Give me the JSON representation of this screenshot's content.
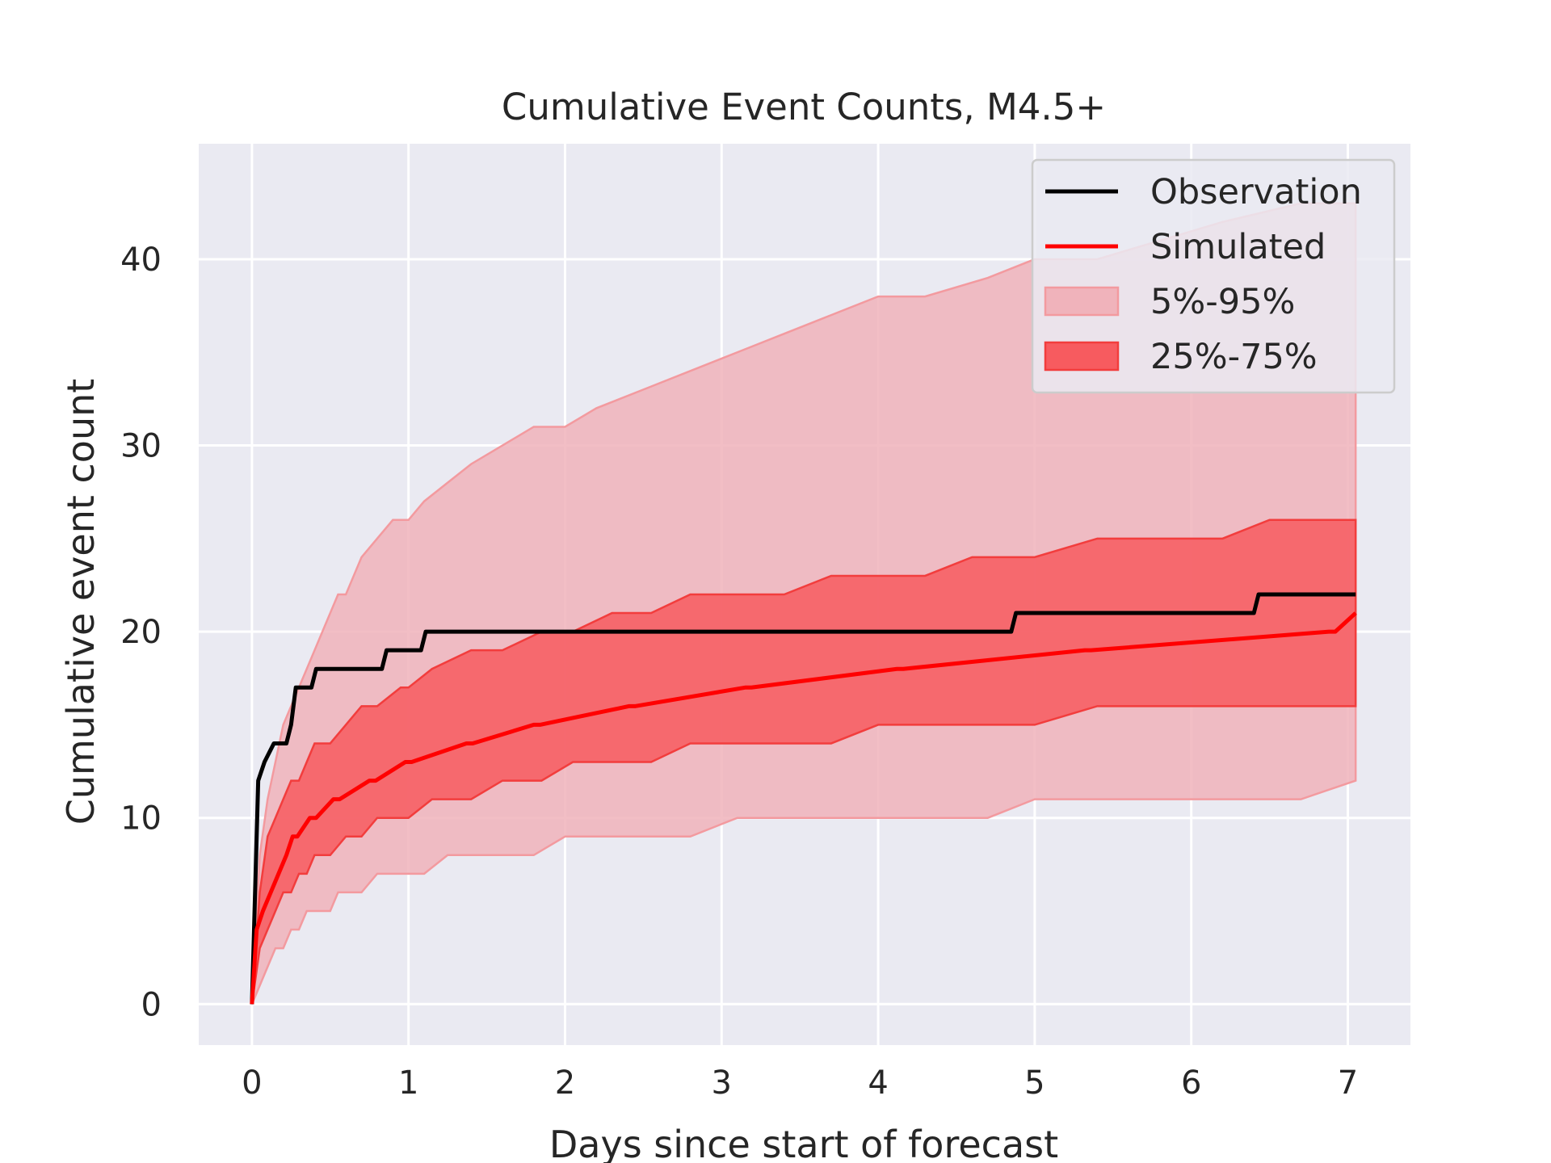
{
  "chart_data": {
    "type": "line",
    "title": "Cumulative Event Counts, M4.5+",
    "xlabel": "Days since start of forecast",
    "ylabel": "Cumulative event count",
    "xlim": [
      -0.34,
      7.4
    ],
    "ylim": [
      -2.2,
      46.2
    ],
    "xticks": [
      0,
      1,
      2,
      3,
      4,
      5,
      6,
      7
    ],
    "yticks": [
      0,
      10,
      20,
      30,
      40
    ],
    "grid": true,
    "legend_position": "top-right",
    "colors": {
      "background": "#eaeaf2",
      "grid": "#ffffff",
      "observation": "#000000",
      "simulated": "#ff0000",
      "band_outer": "#f0b3bb",
      "band_outer_edge": "#f39a9f",
      "band_inner": "#f75b5f",
      "band_inner_edge": "#f23d3d"
    },
    "series": [
      {
        "name": "Observation",
        "kind": "line",
        "x": [
          0,
          0.04,
          0.08,
          0.14,
          0.22,
          0.25,
          0.28,
          0.38,
          0.41,
          0.83,
          0.86,
          1.08,
          1.11,
          4.85,
          4.88,
          6.4,
          6.43,
          7.05
        ],
        "y": [
          0,
          12,
          13,
          14,
          14,
          15,
          17,
          17,
          18,
          18,
          19,
          19,
          20,
          20,
          21,
          21,
          22,
          22
        ]
      },
      {
        "name": "Simulated",
        "kind": "line",
        "x": [
          0,
          0.03,
          0.07,
          0.12,
          0.17,
          0.22,
          0.26,
          0.29,
          0.37,
          0.41,
          0.52,
          0.56,
          0.75,
          0.79,
          0.98,
          1.02,
          1.37,
          1.41,
          1.8,
          1.84,
          2.41,
          2.45,
          3.15,
          3.19,
          4.12,
          4.16,
          5.32,
          5.36,
          6.88,
          6.92,
          7.05
        ],
        "y": [
          0,
          4,
          5,
          6,
          7,
          8,
          9,
          9,
          10,
          10,
          11,
          11,
          12,
          12,
          13,
          13,
          14,
          14,
          15,
          15,
          16,
          16,
          17,
          17,
          18,
          18,
          19,
          19,
          20,
          20,
          21
        ]
      },
      {
        "name": "5%-95%",
        "kind": "band",
        "x": [
          0,
          0.05,
          0.1,
          0.15,
          0.2,
          0.25,
          0.3,
          0.35,
          0.4,
          0.45,
          0.5,
          0.55,
          0.6,
          0.65,
          0.7,
          0.8,
          0.9,
          1.0,
          1.1,
          1.25,
          1.4,
          1.6,
          1.8,
          2.0,
          2.2,
          2.5,
          2.8,
          3.1,
          3.4,
          3.7,
          4.0,
          4.3,
          4.7,
          5.0,
          5.4,
          5.8,
          6.2,
          6.7,
          7.05
        ],
        "upper": [
          0,
          8,
          11,
          13,
          15,
          16,
          17,
          18,
          19,
          20,
          21,
          22,
          22,
          23,
          24,
          25,
          26,
          26,
          27,
          28,
          29,
          30,
          31,
          31,
          32,
          33,
          34,
          35,
          36,
          37,
          38,
          38,
          39,
          40,
          40,
          41,
          42,
          43,
          43
        ],
        "lower": [
          0,
          1,
          2,
          3,
          3,
          4,
          4,
          5,
          5,
          5,
          5,
          6,
          6,
          6,
          6,
          7,
          7,
          7,
          7,
          8,
          8,
          8,
          8,
          9,
          9,
          9,
          9,
          10,
          10,
          10,
          10,
          10,
          10,
          11,
          11,
          11,
          11,
          11,
          12
        ]
      },
      {
        "name": "25%-75%",
        "kind": "band",
        "x": [
          0,
          0.05,
          0.1,
          0.15,
          0.2,
          0.25,
          0.3,
          0.35,
          0.4,
          0.5,
          0.6,
          0.7,
          0.8,
          0.95,
          1.0,
          1.15,
          1.4,
          1.6,
          1.85,
          2.05,
          2.3,
          2.55,
          2.8,
          3.1,
          3.4,
          3.7,
          4.0,
          4.3,
          4.6,
          5.0,
          5.4,
          5.8,
          6.2,
          6.5,
          6.8,
          7.05
        ],
        "upper": [
          0,
          6,
          9,
          10,
          11,
          12,
          12,
          13,
          14,
          14,
          15,
          16,
          16,
          17,
          17,
          18,
          19,
          19,
          20,
          20,
          21,
          21,
          22,
          22,
          22,
          23,
          23,
          23,
          24,
          24,
          25,
          25,
          25,
          26,
          26,
          26
        ],
        "lower": [
          0,
          3,
          4,
          5,
          6,
          6,
          7,
          7,
          8,
          8,
          9,
          9,
          10,
          10,
          10,
          11,
          11,
          12,
          12,
          13,
          13,
          13,
          14,
          14,
          14,
          14,
          15,
          15,
          15,
          15,
          16,
          16,
          16,
          16,
          16,
          16
        ]
      }
    ],
    "legend": [
      "Observation",
      "Simulated",
      "5%-95%",
      "25%-75%"
    ]
  }
}
